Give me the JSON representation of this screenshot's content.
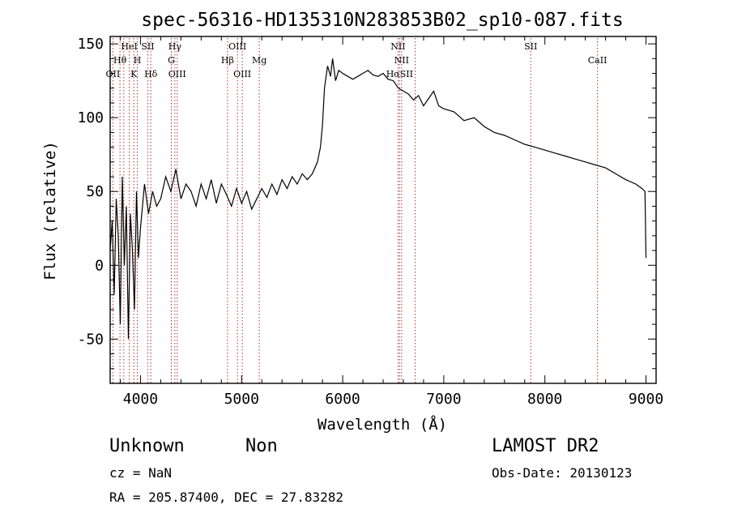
{
  "chart_data": {
    "type": "line",
    "title": "spec-56316-HD135310N283853B02_sp10-087.fits",
    "xlabel": "Wavelength (Å)",
    "ylabel": "Flux (relative)",
    "xlim": [
      3700,
      9100
    ],
    "ylim": [
      -80,
      155
    ],
    "x_ticks": [
      4000,
      5000,
      6000,
      7000,
      8000,
      9000
    ],
    "y_ticks": [
      -50,
      0,
      50,
      100,
      150
    ],
    "grid": false,
    "series": [
      {
        "values_note_x": "wavelength",
        "x": [
          3700,
          3720,
          3740,
          3760,
          3780,
          3800,
          3820,
          3840,
          3860,
          3880,
          3900,
          3920,
          3940,
          3960,
          3980,
          4000,
          4040,
          4080,
          4120,
          4160,
          4200,
          4250,
          4300,
          4350,
          4400,
          4450,
          4500,
          4550,
          4600,
          4650,
          4700,
          4750,
          4800,
          4850,
          4900,
          4950,
          5000,
          5050,
          5100,
          5150,
          5200,
          5250,
          5300,
          5350,
          5400,
          5450,
          5500,
          5550,
          5600,
          5650,
          5700,
          5750,
          5780,
          5800,
          5820,
          5850,
          5880,
          5900,
          5930,
          5960,
          6000,
          6050,
          6100,
          6150,
          6200,
          6250,
          6300,
          6350,
          6400,
          6450,
          6500,
          6550,
          6600,
          6650,
          6700,
          6750,
          6800,
          6850,
          6900,
          6950,
          7000,
          7100,
          7200,
          7300,
          7400,
          7500,
          7600,
          7700,
          7800,
          7900,
          8000,
          8100,
          8200,
          8300,
          8400,
          8500,
          8600,
          8700,
          8800,
          8900,
          8960,
          8990,
          9000
        ],
        "y": [
          10,
          30,
          -20,
          45,
          20,
          -40,
          60,
          0,
          40,
          -50,
          35,
          10,
          -30,
          50,
          5,
          25,
          55,
          35,
          50,
          40,
          45,
          60,
          50,
          65,
          45,
          55,
          50,
          40,
          55,
          45,
          58,
          42,
          55,
          48,
          40,
          52,
          42,
          50,
          38,
          45,
          52,
          46,
          55,
          48,
          58,
          52,
          60,
          55,
          62,
          58,
          62,
          70,
          80,
          95,
          120,
          135,
          128,
          140,
          125,
          132,
          130,
          128,
          126,
          128,
          130,
          132,
          129,
          128,
          130,
          126,
          125,
          120,
          118,
          116,
          112,
          115,
          108,
          113,
          118,
          108,
          106,
          104,
          98,
          100,
          94,
          90,
          88,
          85,
          82,
          80,
          78,
          76,
          74,
          72,
          70,
          68,
          66,
          62,
          58,
          55,
          52,
          50,
          5
        ]
      }
    ],
    "line_labels": [
      {
        "label": "OII",
        "x": 3727,
        "row": 3
      },
      {
        "label": "Hθ",
        "x": 3797,
        "row": 2
      },
      {
        "label": "HeI",
        "x": 3889,
        "row": 1
      },
      {
        "label": "K",
        "x": 3934,
        "row": 3
      },
      {
        "label": "H",
        "x": 3969,
        "row": 2
      },
      {
        "label": "SII",
        "x": 4072,
        "row": 1
      },
      {
        "label": "Hδ",
        "x": 4102,
        "row": 3
      },
      {
        "label": "Hγ",
        "x": 4340,
        "row": 1
      },
      {
        "label": "G",
        "x": 4305,
        "row": 2
      },
      {
        "label": "OIII",
        "x": 4363,
        "row": 3
      },
      {
        "label": "Hβ",
        "x": 4861,
        "row": 2
      },
      {
        "label": "OIII",
        "x": 4959,
        "row": 1
      },
      {
        "label": "OIII",
        "x": 5007,
        "row": 3
      },
      {
        "label": "Mg",
        "x": 5175,
        "row": 2
      },
      {
        "label": "NII",
        "x": 6548,
        "row": 1
      },
      {
        "label": "NII",
        "x": 6583,
        "row": 2
      },
      {
        "label": "HαSII",
        "x": 6563,
        "row": 3
      },
      {
        "label": "SII",
        "x": 7860,
        "row": 1
      },
      {
        "label": "CaII",
        "x": 8520,
        "row": 2
      }
    ],
    "line_marker_x": [
      3727,
      3797,
      3835,
      3889,
      3934,
      3969,
      4072,
      4102,
      4305,
      4340,
      4363,
      4861,
      4959,
      5007,
      5175,
      6548,
      6563,
      6583,
      6717,
      7860,
      8520
    ],
    "colors": {
      "spectrum": "#000000",
      "markers": "#b03030"
    }
  },
  "annotations": {
    "class": "Unknown",
    "subclass": "Non",
    "survey": "LAMOST DR2",
    "cz": "cz = NaN",
    "obs_date": "Obs-Date: 20130123",
    "radec": "RA = 205.87400, DEC =  27.83282"
  }
}
